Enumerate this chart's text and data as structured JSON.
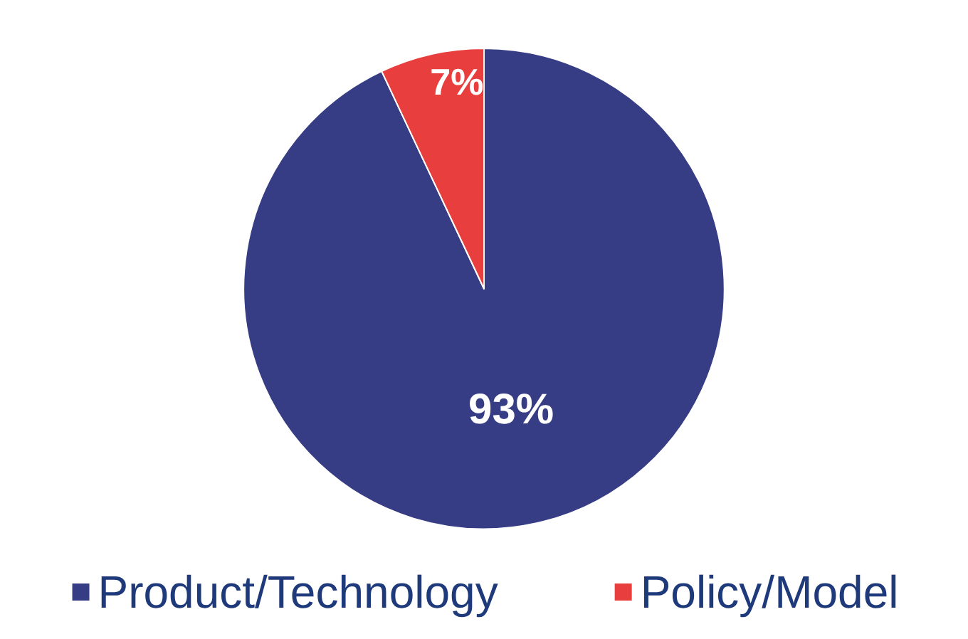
{
  "chart_data": {
    "type": "pie",
    "categories": [
      "Product/Technology",
      "Policy/Model"
    ],
    "values": [
      93,
      7
    ],
    "colors": [
      "#363d85",
      "#e83e3e"
    ],
    "value_labels": [
      "93%",
      "7%"
    ],
    "legend": "bottom"
  }
}
